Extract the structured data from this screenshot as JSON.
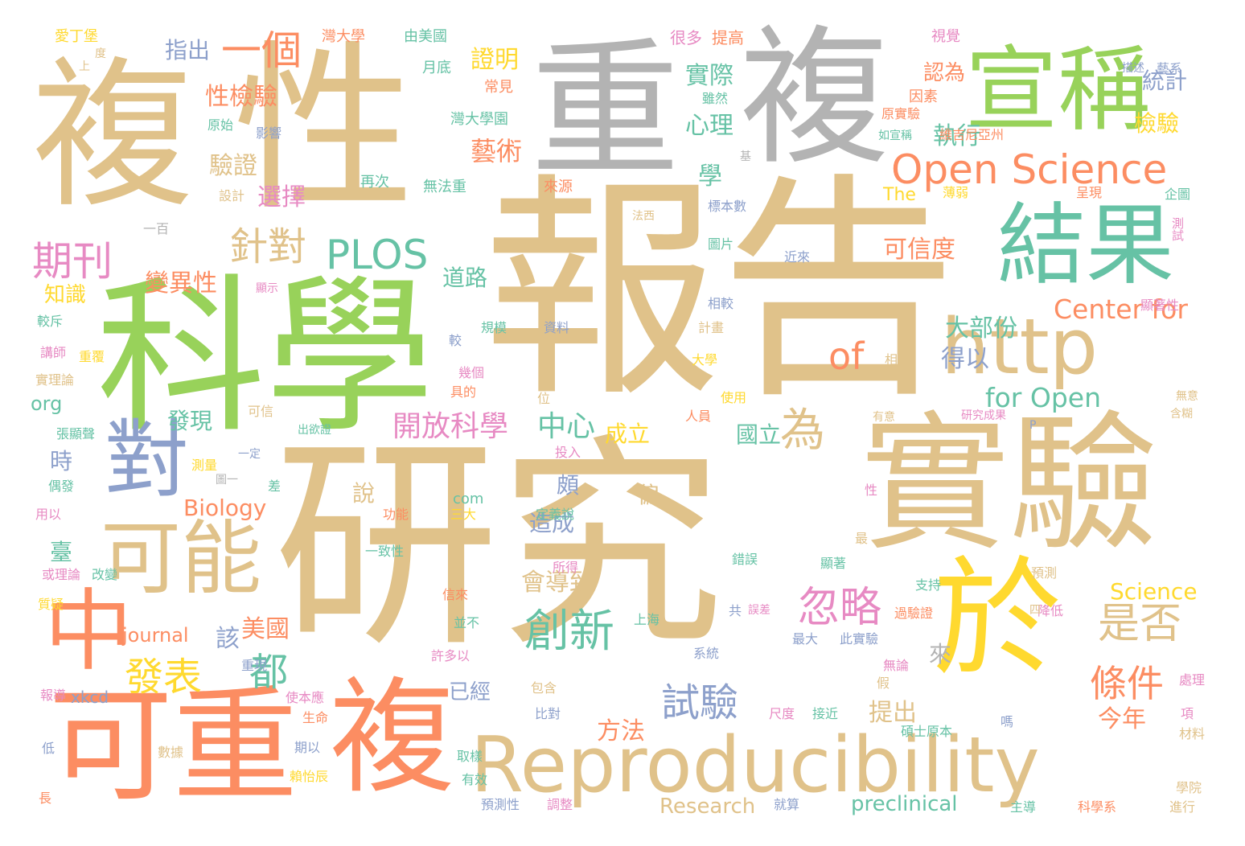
{
  "palette": {
    "tan": "#e0c28a",
    "green": "#98d25a",
    "gray": "#b3b3b3",
    "orange": "#fc8d62",
    "teal": "#66c2a5",
    "blue": "#8da0cb",
    "pink": "#e78ac3",
    "yellow": "#ffd92f"
  },
  "words": [
    {
      "text": "研究",
      "color": "tan"
    },
    {
      "text": "報告",
      "color": "tan"
    },
    {
      "text": "科學",
      "color": "green"
    },
    {
      "text": "複",
      "color": "tan"
    },
    {
      "text": "性",
      "color": "tan"
    },
    {
      "text": "重",
      "color": "gray"
    },
    {
      "text": "複",
      "color": "gray"
    },
    {
      "text": "實驗",
      "color": "tan"
    },
    {
      "text": "可重",
      "color": "orange"
    },
    {
      "text": "複",
      "color": "orange"
    },
    {
      "text": "於",
      "color": "yellow"
    },
    {
      "text": "Reproducibility",
      "color": "tan"
    },
    {
      "text": "宣稱",
      "color": "green"
    },
    {
      "text": "結果",
      "color": "teal"
    },
    {
      "text": "http",
      "color": "tan"
    },
    {
      "text": "對",
      "color": "blue"
    },
    {
      "text": "可能",
      "color": "tan"
    },
    {
      "text": "中",
      "color": "orange"
    },
    {
      "text": "Open Science",
      "color": "orange"
    },
    {
      "text": "一個",
      "color": "orange"
    },
    {
      "text": "PLOS",
      "color": "teal"
    },
    {
      "text": "針對",
      "color": "tan"
    },
    {
      "text": "期刊",
      "color": "pink"
    },
    {
      "text": "of",
      "color": "orange"
    },
    {
      "text": "Center for",
      "color": "orange"
    },
    {
      "text": "for Open",
      "color": "teal"
    },
    {
      "text": "開放科學",
      "color": "pink"
    },
    {
      "text": "中心",
      "color": "teal"
    },
    {
      "text": "為",
      "color": "tan"
    },
    {
      "text": "忽略",
      "color": "pink"
    },
    {
      "text": "創新",
      "color": "teal"
    },
    {
      "text": "發表",
      "color": "yellow"
    },
    {
      "text": "都",
      "color": "teal"
    },
    {
      "text": "是否",
      "color": "tan"
    },
    {
      "text": "條件",
      "color": "orange"
    },
    {
      "text": "試驗",
      "color": "blue"
    },
    {
      "text": "藝術",
      "color": "orange"
    },
    {
      "text": "執行",
      "color": "teal"
    },
    {
      "text": "證明",
      "color": "yellow"
    },
    {
      "text": "性檢驗",
      "color": "orange"
    },
    {
      "text": "驗證",
      "color": "tan"
    },
    {
      "text": "選擇",
      "color": "pink"
    },
    {
      "text": "變異性",
      "color": "orange"
    },
    {
      "text": "道路",
      "color": "teal"
    },
    {
      "text": "可信度",
      "color": "orange"
    },
    {
      "text": "大部份",
      "color": "teal"
    },
    {
      "text": "得以",
      "color": "blue"
    },
    {
      "text": "統計",
      "color": "blue"
    },
    {
      "text": "檢驗",
      "color": "yellow"
    },
    {
      "text": "認為",
      "color": "orange"
    },
    {
      "text": "實際",
      "color": "teal"
    },
    {
      "text": "心理",
      "color": "teal"
    },
    {
      "text": "學",
      "color": "teal"
    },
    {
      "text": "指出",
      "color": "blue"
    },
    {
      "text": "知識",
      "color": "yellow"
    },
    {
      "text": "Biology",
      "color": "orange"
    },
    {
      "text": "會導致",
      "color": "tan"
    },
    {
      "text": "美國",
      "color": "orange"
    },
    {
      "text": "該",
      "color": "blue"
    },
    {
      "text": "方法",
      "color": "orange"
    },
    {
      "text": "提出",
      "color": "tan"
    },
    {
      "text": "今年",
      "color": "orange"
    },
    {
      "text": "Science",
      "color": "yellow"
    },
    {
      "text": "journal",
      "color": "orange"
    },
    {
      "text": "preclinical",
      "color": "teal"
    },
    {
      "text": "Research",
      "color": "tan"
    },
    {
      "text": "國立",
      "color": "teal"
    },
    {
      "text": "成立",
      "color": "yellow"
    },
    {
      "text": "頗",
      "color": "blue"
    },
    {
      "text": "偏",
      "color": "tan"
    },
    {
      "text": "造成",
      "color": "blue"
    },
    {
      "text": "說",
      "color": "tan"
    },
    {
      "text": "發現",
      "color": "teal"
    },
    {
      "text": "已經",
      "color": "blue"
    },
    {
      "text": "來",
      "color": "gray"
    },
    {
      "text": "時",
      "color": "blue"
    },
    {
      "text": "臺",
      "color": "teal"
    },
    {
      "text": "org",
      "color": "teal"
    },
    {
      "text": "xkcd",
      "color": "blue"
    },
    {
      "text": "com",
      "color": "teal"
    },
    {
      "text": "The",
      "color": "yellow"
    },
    {
      "text": "由美國",
      "color": "teal"
    },
    {
      "text": "灣大學",
      "color": "orange"
    },
    {
      "text": "月底",
      "color": "teal"
    },
    {
      "text": "常見",
      "color": "orange"
    },
    {
      "text": "灣大學園",
      "color": "teal"
    },
    {
      "text": "愛丁堡",
      "color": "yellow"
    },
    {
      "text": "原始",
      "color": "teal"
    },
    {
      "text": "影響",
      "color": "blue"
    },
    {
      "text": "很多",
      "color": "pink"
    },
    {
      "text": "提高",
      "color": "orange"
    },
    {
      "text": "視覺",
      "color": "pink"
    },
    {
      "text": "藝系",
      "color": "blue"
    },
    {
      "text": "描述",
      "color": "blue"
    },
    {
      "text": "雖然",
      "color": "teal"
    },
    {
      "text": "因素",
      "color": "orange"
    },
    {
      "text": "原實驗",
      "color": "orange"
    },
    {
      "text": "如宣稱",
      "color": "teal"
    },
    {
      "text": "維吉尼亞州",
      "color": "orange"
    },
    {
      "text": "再次",
      "color": "teal"
    },
    {
      "text": "無法重",
      "color": "teal"
    },
    {
      "text": "來源",
      "color": "orange"
    },
    {
      "text": "設計",
      "color": "tan"
    },
    {
      "text": "一百",
      "color": "gray"
    },
    {
      "text": "標本數",
      "color": "blue"
    },
    {
      "text": "法西",
      "color": "tan"
    },
    {
      "text": "圖片",
      "color": "teal"
    },
    {
      "text": "近來",
      "color": "blue"
    },
    {
      "text": "薄弱",
      "color": "yellow"
    },
    {
      "text": "呈現",
      "color": "orange"
    },
    {
      "text": "企圖",
      "color": "teal"
    },
    {
      "text": "測試",
      "color": "pink"
    },
    {
      "text": "顯示",
      "color": "pink"
    },
    {
      "text": "較斥",
      "color": "teal"
    },
    {
      "text": "相較",
      "color": "blue"
    },
    {
      "text": "規模",
      "color": "teal"
    },
    {
      "text": "資料",
      "color": "blue"
    },
    {
      "text": "計畫",
      "color": "tan"
    },
    {
      "text": "顯著性",
      "color": "pink"
    },
    {
      "text": "講師",
      "color": "pink"
    },
    {
      "text": "重覆",
      "color": "yellow"
    },
    {
      "text": "實理論",
      "color": "tan"
    },
    {
      "text": "大學",
      "color": "yellow"
    },
    {
      "text": "較",
      "color": "blue"
    },
    {
      "text": "相",
      "color": "tan"
    },
    {
      "text": "幾個",
      "color": "pink"
    },
    {
      "text": "具的",
      "color": "orange"
    },
    {
      "text": "位",
      "color": "tan"
    },
    {
      "text": "使用",
      "color": "yellow"
    },
    {
      "text": "可信",
      "color": "tan"
    },
    {
      "text": "人員",
      "color": "orange"
    },
    {
      "text": "出欲證",
      "color": "teal"
    },
    {
      "text": "有意",
      "color": "tan"
    },
    {
      "text": "研究成果",
      "color": "pink"
    },
    {
      "text": "無意",
      "color": "tan"
    },
    {
      "text": "含糊",
      "color": "tan"
    },
    {
      "text": "張顯聲",
      "color": "teal"
    },
    {
      "text": "一定",
      "color": "blue"
    },
    {
      "text": "測量",
      "color": "yellow"
    },
    {
      "text": "投入",
      "color": "pink"
    },
    {
      "text": "偶發",
      "color": "teal"
    },
    {
      "text": "圖一",
      "color": "gray"
    },
    {
      "text": "差",
      "color": "teal"
    },
    {
      "text": "用以",
      "color": "pink"
    },
    {
      "text": "功能",
      "color": "orange"
    },
    {
      "text": "定義說",
      "color": "teal"
    },
    {
      "text": "性",
      "color": "pink"
    },
    {
      "text": "三大",
      "color": "yellow"
    },
    {
      "text": "一致性",
      "color": "teal"
    },
    {
      "text": "最",
      "color": "tan"
    },
    {
      "text": "錯誤",
      "color": "teal"
    },
    {
      "text": "所得",
      "color": "pink"
    },
    {
      "text": "顯著",
      "color": "teal"
    },
    {
      "text": "預測",
      "color": "tan"
    },
    {
      "text": "降低",
      "color": "pink"
    },
    {
      "text": "或理論",
      "color": "pink"
    },
    {
      "text": "改變",
      "color": "teal"
    },
    {
      "text": "質疑",
      "color": "yellow"
    },
    {
      "text": "信來",
      "color": "orange"
    },
    {
      "text": "支持",
      "color": "teal"
    },
    {
      "text": "共",
      "color": "blue"
    },
    {
      "text": "誤差",
      "color": "pink"
    },
    {
      "text": "過驗證",
      "color": "orange"
    },
    {
      "text": "四",
      "color": "tan"
    },
    {
      "text": "上海",
      "color": "teal"
    },
    {
      "text": "最大",
      "color": "blue"
    },
    {
      "text": "此實驗",
      "color": "blue"
    },
    {
      "text": "並不",
      "color": "teal"
    },
    {
      "text": "系統",
      "color": "blue"
    },
    {
      "text": "無論",
      "color": "pink"
    },
    {
      "text": "許多以",
      "color": "pink"
    },
    {
      "text": "處理",
      "color": "pink"
    },
    {
      "text": "報導",
      "color": "pink"
    },
    {
      "text": "重現",
      "color": "blue"
    },
    {
      "text": "使本應",
      "color": "pink"
    },
    {
      "text": "包含",
      "color": "tan"
    },
    {
      "text": "假",
      "color": "tan"
    },
    {
      "text": "生命",
      "color": "orange"
    },
    {
      "text": "比對",
      "color": "blue"
    },
    {
      "text": "尺度",
      "color": "pink"
    },
    {
      "text": "接近",
      "color": "teal"
    },
    {
      "text": "嗎",
      "color": "blue"
    },
    {
      "text": "項",
      "color": "pink"
    },
    {
      "text": "碩士原本",
      "color": "teal"
    },
    {
      "text": "低",
      "color": "blue"
    },
    {
      "text": "期以",
      "color": "blue"
    },
    {
      "text": "數據",
      "color": "tan"
    },
    {
      "text": "賴怡辰",
      "color": "yellow"
    },
    {
      "text": "取樣",
      "color": "teal"
    },
    {
      "text": "材料",
      "color": "tan"
    },
    {
      "text": "有效",
      "color": "teal"
    },
    {
      "text": "學院",
      "color": "tan"
    },
    {
      "text": "長",
      "color": "orange"
    },
    {
      "text": "預測性",
      "color": "blue"
    },
    {
      "text": "調整",
      "color": "pink"
    },
    {
      "text": "就算",
      "color": "blue"
    },
    {
      "text": "主導",
      "color": "teal"
    },
    {
      "text": "科學系",
      "color": "orange"
    },
    {
      "text": "進行",
      "color": "tan"
    },
    {
      "text": "上",
      "color": "tan"
    },
    {
      "text": "度",
      "color": "tan"
    },
    {
      "text": "基",
      "color": "gray"
    },
    {
      "text": "P",
      "color": "blue"
    }
  ]
}
